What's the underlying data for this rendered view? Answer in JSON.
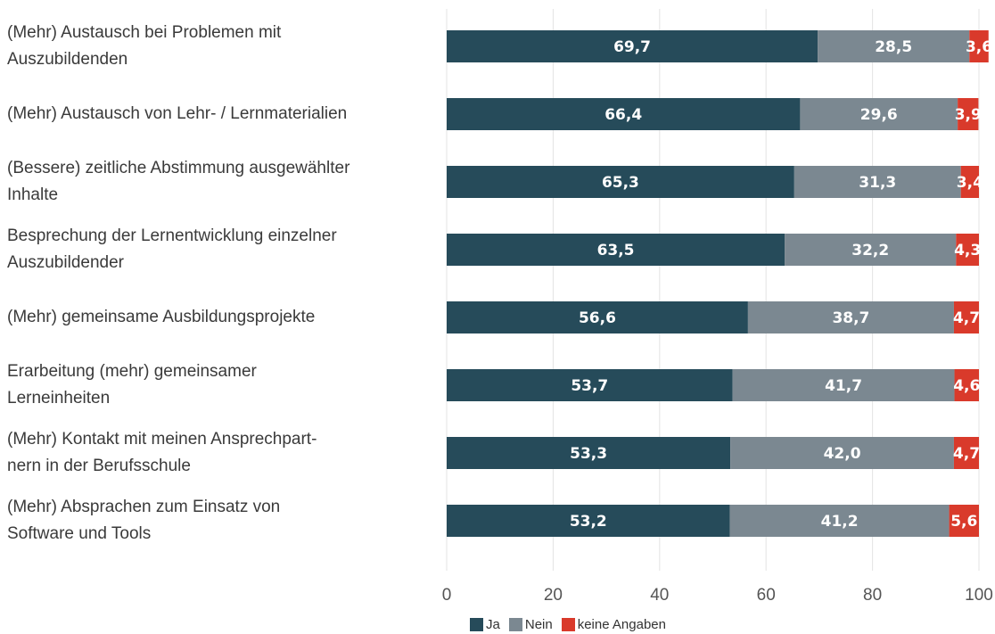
{
  "chart_data": {
    "type": "stacked-barh",
    "categories": [
      "(Mehr) Austausch bei Problemen mit\nAuszubildenden",
      "(Mehr) Austausch von Lehr- / Lernmaterialien",
      "(Bessere) zeitliche Abstimmung ausgewählter\nInhalte",
      "Besprechung der Lernentwicklung einzelner\nAuszubildender",
      "(Mehr) gemeinsame Ausbildungsprojekte",
      "Erarbeitung (mehr) gemeinsamer\nLerneinheiten",
      "(Mehr) Kontakt mit meinen Ansprechpart-\nnern in der Berufsschule",
      "(Mehr) Absprachen zum Einsatz von\nSoftware und Tools"
    ],
    "series": [
      {
        "name": "Ja",
        "color": "#264b5a",
        "values": [
          69.7,
          66.4,
          65.3,
          63.5,
          56.6,
          53.7,
          53.3,
          53.2
        ],
        "value_labels": [
          "69,7",
          "66,4",
          "65,3",
          "63,5",
          "56,6",
          "53,7",
          "53,3",
          "53,2"
        ]
      },
      {
        "name": "Nein",
        "color": "#7b8891",
        "values": [
          28.5,
          29.6,
          31.3,
          32.2,
          38.7,
          41.7,
          42.0,
          41.2
        ],
        "value_labels": [
          "28,5",
          "29,6",
          "31,3",
          "32,2",
          "38,7",
          "41,7",
          "42,0",
          "41,2"
        ]
      },
      {
        "name": "keine Angaben",
        "color": "#d93a2b",
        "values": [
          3.6,
          3.9,
          3.4,
          4.3,
          4.7,
          4.6,
          4.7,
          5.6
        ],
        "value_labels": [
          "3,6",
          "3,9",
          "3,4",
          "4,3",
          "4,7",
          "4,6",
          "4,7",
          "5,6"
        ]
      }
    ],
    "xlim": [
      0,
      100
    ],
    "xticks": [
      0,
      20,
      40,
      60,
      80,
      100
    ],
    "grid": true,
    "legend": "bottom"
  }
}
